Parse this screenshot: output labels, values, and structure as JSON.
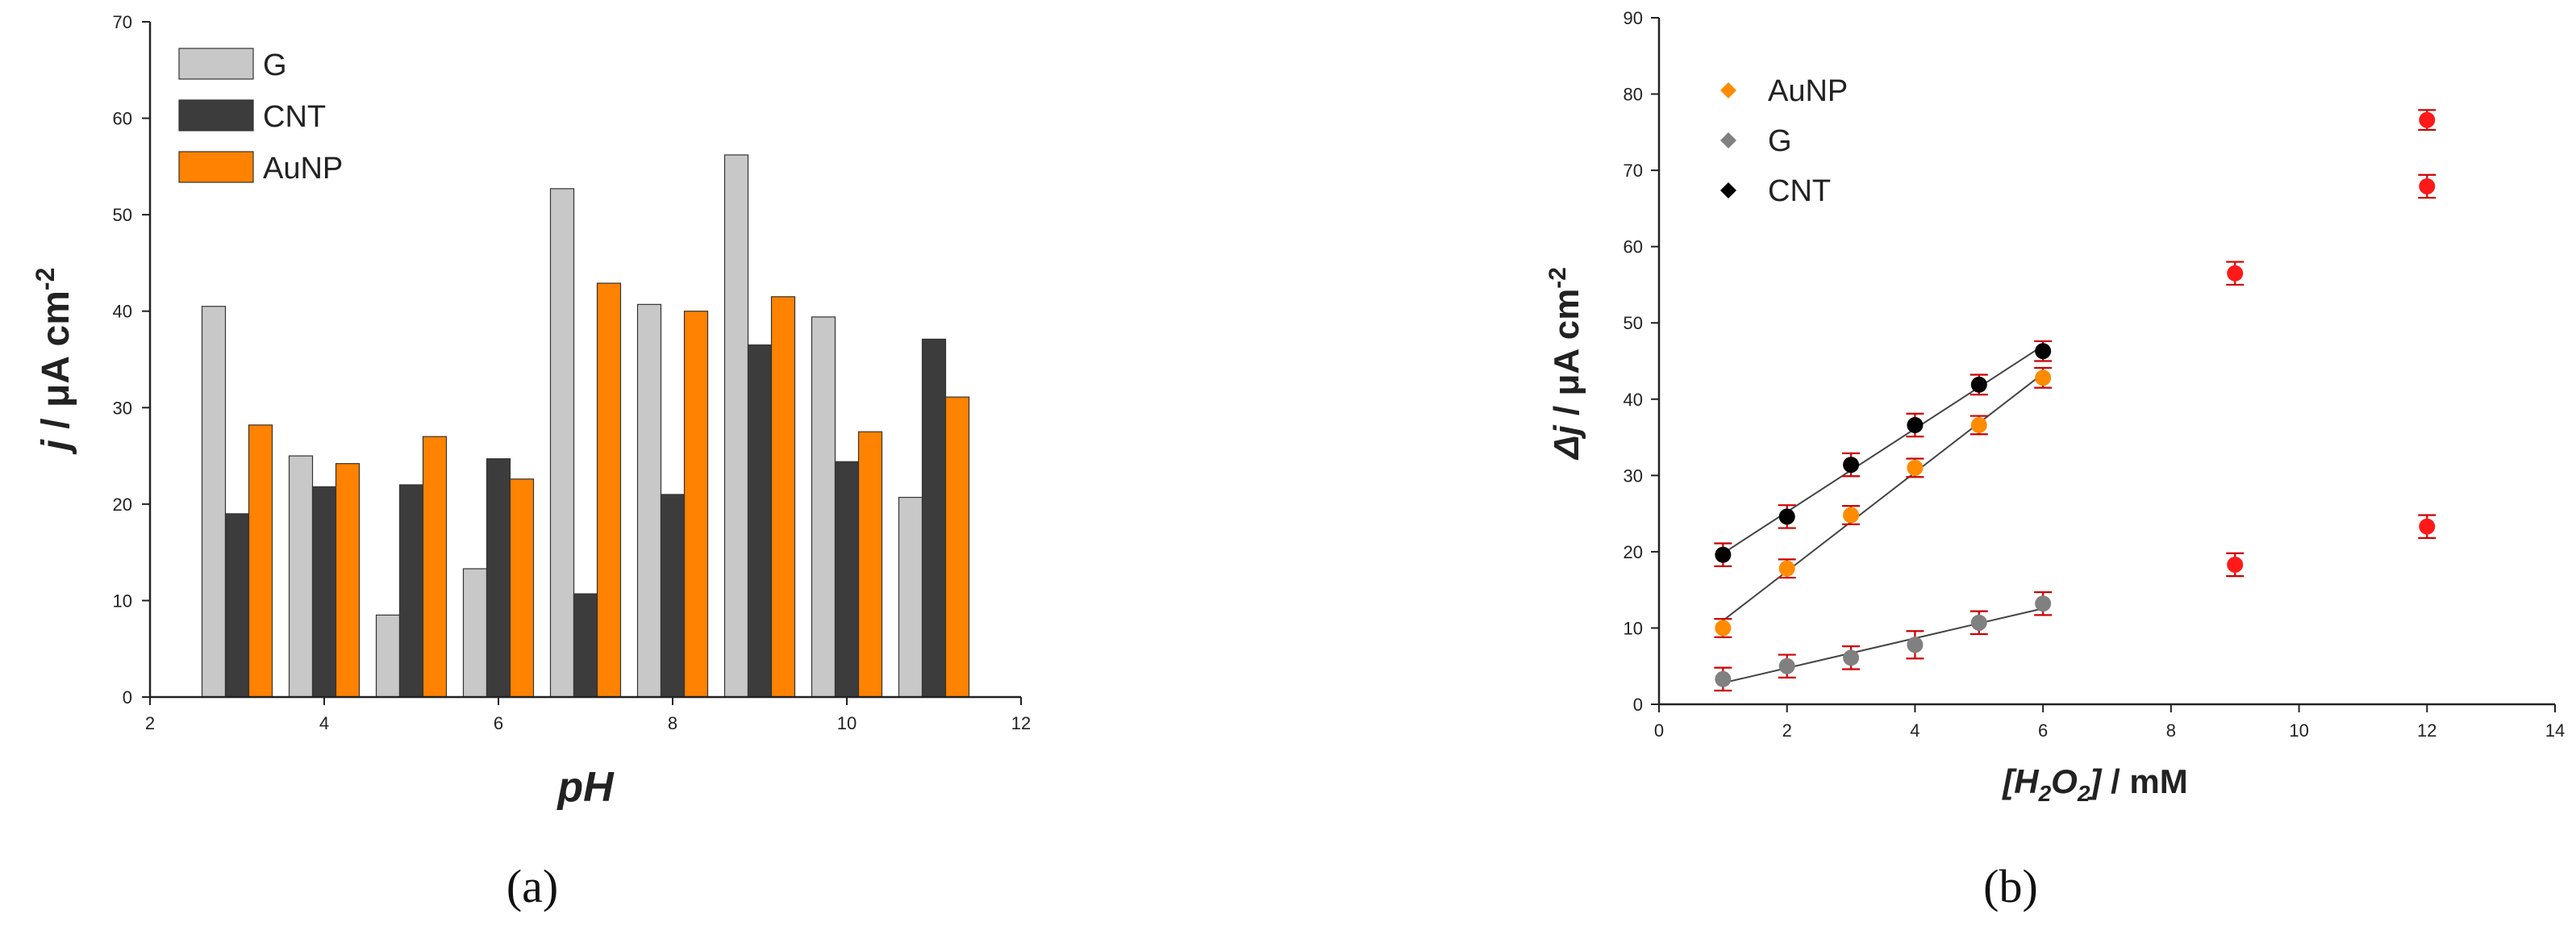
{
  "chart_data": [
    {
      "type": "bar",
      "label": "(a)",
      "x": [
        3,
        4,
        5,
        6,
        7,
        8,
        9,
        10,
        11
      ],
      "series": [
        {
          "name": "G",
          "values": [
            40.5,
            25.0,
            8.5,
            13.3,
            52.7,
            40.7,
            56.2,
            39.4,
            20.7
          ],
          "color": "#c8c8c8"
        },
        {
          "name": "CNT",
          "values": [
            19.0,
            21.8,
            22.0,
            24.7,
            10.7,
            21.0,
            36.5,
            24.4,
            37.1
          ],
          "color": "#3c3c3c"
        },
        {
          "name": "AuNP",
          "values": [
            28.2,
            24.2,
            27.0,
            22.6,
            42.9,
            40.0,
            41.5,
            27.5,
            31.1
          ],
          "color": "#ff8200"
        }
      ],
      "xlabel": "pH",
      "ylabel_main": "j",
      "ylabel_unit": " / μA cm",
      "ylabel_sup": "-2",
      "xlim": [
        2,
        12
      ],
      "ylim": [
        0,
        70
      ],
      "xticks": [
        "2",
        "4",
        "6",
        "8",
        "10",
        "12"
      ],
      "yticks": [
        "0",
        "10",
        "20",
        "30",
        "40",
        "50",
        "60",
        "70"
      ],
      "legend": "top-left",
      "grid": false
    },
    {
      "type": "scatter",
      "label": "(b)",
      "series": [
        {
          "name": "AuNP",
          "color": "#ff8c00",
          "fit": true,
          "x": [
            1,
            2,
            3,
            4,
            5,
            6
          ],
          "y": [
            10.0,
            17.8,
            24.8,
            31.0,
            36.6,
            42.8
          ],
          "err": [
            1.2,
            1.2,
            1.2,
            1.2,
            1.2,
            1.3
          ]
        },
        {
          "name": "G",
          "color": "#808080",
          "fit": true,
          "x": [
            1,
            2,
            3,
            4,
            5,
            6
          ],
          "y": [
            3.3,
            5.0,
            6.1,
            7.8,
            10.7,
            13.2
          ],
          "err": [
            1.5,
            1.5,
            1.5,
            1.8,
            1.5,
            1.5
          ]
        },
        {
          "name": "CNT",
          "color": "#000000",
          "fit": true,
          "x": [
            1,
            2,
            3,
            4,
            5,
            6
          ],
          "y": [
            19.6,
            24.6,
            31.4,
            36.6,
            41.9,
            46.3
          ],
          "err": [
            1.5,
            1.5,
            1.5,
            1.5,
            1.3,
            1.3
          ]
        },
        {
          "color": "#ff1a1a",
          "fit": false,
          "x": [
            9,
            9,
            12,
            12,
            12
          ],
          "y": [
            56.5,
            18.3,
            76.6,
            67.9,
            23.3
          ],
          "err": [
            1.5,
            1.5,
            1.3,
            1.5,
            1.5
          ]
        }
      ],
      "errorbar_color": "#cc0000",
      "xlabel_main": "[H",
      "xlabel_sub1": "2",
      "xlabel_mid": "O",
      "xlabel_sub2": "2",
      "xlabel_end": "]",
      "xlabel_unit": " / mM",
      "ylabel_main": "Δj",
      "ylabel_unit": " / μA cm",
      "ylabel_sup": "-2",
      "xlim": [
        0,
        14
      ],
      "ylim": [
        0,
        90
      ],
      "xticks": [
        "0",
        "2",
        "4",
        "6",
        "8",
        "10",
        "12",
        "14"
      ],
      "yticks": [
        "0",
        "10",
        "20",
        "30",
        "40",
        "50",
        "60",
        "70",
        "80",
        "90"
      ],
      "legend": "top-left",
      "grid": false
    }
  ]
}
